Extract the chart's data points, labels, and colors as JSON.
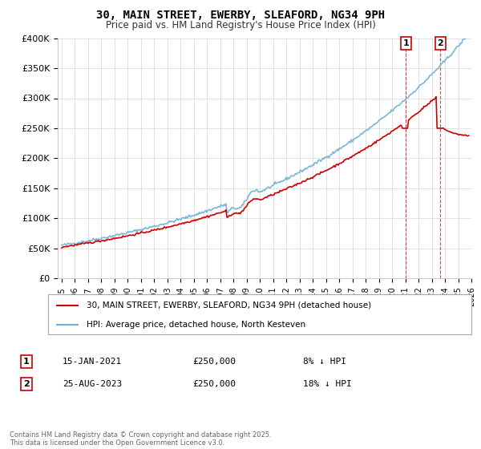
{
  "title": "30, MAIN STREET, EWERBY, SLEAFORD, NG34 9PH",
  "subtitle": "Price paid vs. HM Land Registry's House Price Index (HPI)",
  "legend_line1": "30, MAIN STREET, EWERBY, SLEAFORD, NG34 9PH (detached house)",
  "legend_line2": "HPI: Average price, detached house, North Kesteven",
  "annotation1": {
    "label": "1",
    "date": "15-JAN-2021",
    "price": "£250,000",
    "pct": "8% ↓ HPI",
    "x_year": 2021.04
  },
  "annotation2": {
    "label": "2",
    "date": "25-AUG-2023",
    "price": "£250,000",
    "pct": "18% ↓ HPI",
    "x_year": 2023.65
  },
  "footer": "Contains HM Land Registry data © Crown copyright and database right 2025.\nThis data is licensed under the Open Government Licence v3.0.",
  "hpi_color": "#6baed6",
  "price_color": "#cc0000",
  "ylim": [
    0,
    400000
  ],
  "xlim_start": 1995,
  "xlim_end": 2026,
  "ylabel_ticks": [
    0,
    50000,
    100000,
    150000,
    200000,
    250000,
    300000,
    350000,
    400000
  ],
  "ylabel_labels": [
    "£0",
    "£50K",
    "£100K",
    "£150K",
    "£200K",
    "£250K",
    "£300K",
    "£350K",
    "£400K"
  ],
  "xtick_years": [
    1995,
    1996,
    1997,
    1998,
    1999,
    2000,
    2001,
    2002,
    2003,
    2004,
    2005,
    2006,
    2007,
    2008,
    2009,
    2010,
    2011,
    2012,
    2013,
    2014,
    2015,
    2016,
    2017,
    2018,
    2019,
    2020,
    2021,
    2022,
    2023,
    2024,
    2025,
    2026
  ]
}
